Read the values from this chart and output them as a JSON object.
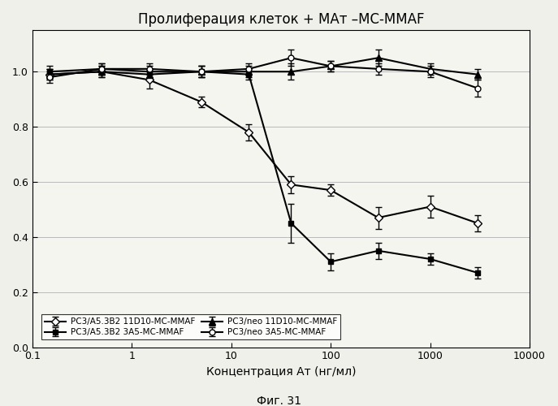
{
  "title": "Пролиферация клеток + МАт –MC-MMAF",
  "xlabel": "Концентрация Ат (нг/мл)",
  "caption": "Фиг. 31",
  "xlim": [
    0.1,
    10000
  ],
  "ylim": [
    0,
    1.15
  ],
  "yticks": [
    0,
    0.2,
    0.4,
    0.6,
    0.8,
    1.0
  ],
  "xticks": [
    0.1,
    1,
    10,
    100,
    1000,
    10000
  ],
  "xtick_labels": [
    "0.1",
    "1",
    "10",
    "100",
    "1000",
    "10000"
  ],
  "series": [
    {
      "label": "PC3/A5.3B2 11D10-MC-MMAF",
      "x": [
        0.15,
        0.5,
        1.5,
        5,
        15,
        40,
        100,
        300,
        1000,
        3000
      ],
      "y": [
        0.99,
        1.0,
        0.97,
        0.89,
        0.78,
        0.59,
        0.57,
        0.47,
        0.51,
        0.45
      ],
      "yerr": [
        0.02,
        0.02,
        0.03,
        0.02,
        0.03,
        0.03,
        0.02,
        0.04,
        0.04,
        0.03
      ],
      "color": "#000000",
      "marker": "D",
      "markersize": 5,
      "markerfacecolor": "white",
      "linestyle": "-"
    },
    {
      "label": "PC3/A5.3B2 3A5-MC-MMAF",
      "x": [
        0.15,
        0.5,
        1.5,
        5,
        15,
        40,
        100,
        300,
        1000,
        3000
      ],
      "y": [
        1.0,
        1.01,
        1.0,
        1.0,
        0.99,
        0.45,
        0.31,
        0.35,
        0.32,
        0.27
      ],
      "yerr": [
        0.02,
        0.02,
        0.02,
        0.02,
        0.02,
        0.07,
        0.03,
        0.03,
        0.02,
        0.02
      ],
      "color": "#000000",
      "marker": "s",
      "markersize": 5,
      "markerfacecolor": "black",
      "linestyle": "-"
    },
    {
      "label": "PC3/neo 11D10-MC-MMAF",
      "x": [
        0.15,
        0.5,
        1.5,
        5,
        15,
        40,
        100,
        300,
        1000,
        3000
      ],
      "y": [
        0.99,
        1.0,
        0.99,
        1.0,
        1.0,
        1.0,
        1.02,
        1.05,
        1.01,
        0.99
      ],
      "yerr": [
        0.02,
        0.02,
        0.02,
        0.02,
        0.02,
        0.03,
        0.02,
        0.03,
        0.02,
        0.02
      ],
      "color": "#000000",
      "marker": "^",
      "markersize": 6,
      "markerfacecolor": "black",
      "linestyle": "-"
    },
    {
      "label": "PC3/neo 3A5-MC-MMAF",
      "x": [
        0.15,
        0.5,
        1.5,
        5,
        15,
        40,
        100,
        300,
        1000,
        3000
      ],
      "y": [
        0.98,
        1.01,
        1.01,
        1.0,
        1.01,
        1.05,
        1.02,
        1.01,
        1.0,
        0.94
      ],
      "yerr": [
        0.02,
        0.02,
        0.02,
        0.02,
        0.02,
        0.03,
        0.02,
        0.02,
        0.02,
        0.03
      ],
      "color": "#000000",
      "marker": "o",
      "markersize": 5,
      "markerfacecolor": "white",
      "linestyle": "-"
    }
  ],
  "background_color": "#f5f5f0",
  "fig_width": 6.87,
  "fig_height": 5.0,
  "dpi": 100
}
